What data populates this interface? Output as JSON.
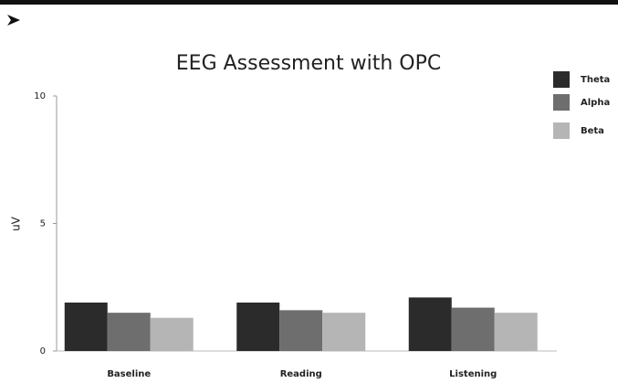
{
  "chart_data": {
    "type": "bar",
    "title": "EEG Assessment with OPC",
    "y_label": "uV",
    "categories": [
      "Baseline",
      "Reading",
      "Listening"
    ],
    "series": [
      {
        "name": "Theta",
        "color": "#2b2b2b",
        "values": [
          1.9,
          1.9,
          2.1
        ]
      },
      {
        "name": "Alpha",
        "color": "#6e6e6e",
        "values": [
          1.5,
          1.6,
          1.7
        ]
      },
      {
        "name": "Beta",
        "color": "#b5b5b5",
        "values": [
          1.3,
          1.5,
          1.5
        ]
      }
    ],
    "ylim": [
      0,
      10
    ],
    "yticks": [
      0,
      5,
      10
    ],
    "legend": "right"
  }
}
